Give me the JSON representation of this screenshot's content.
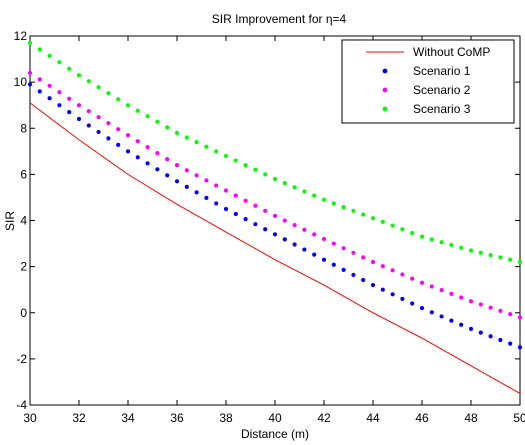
{
  "chart_data": {
    "type": "line",
    "title": "SIR Improvement for η=4",
    "xlabel": "Distance (m)",
    "ylabel": "SIR",
    "xlim": [
      30,
      50
    ],
    "ylim": [
      -4,
      12
    ],
    "xticks": [
      30,
      32,
      34,
      36,
      38,
      40,
      42,
      44,
      46,
      48,
      50
    ],
    "yticks": [
      -4,
      -2,
      0,
      2,
      4,
      6,
      8,
      10,
      12
    ],
    "grid": false,
    "legend_position": "top-right",
    "series": [
      {
        "name": "Without CoMP",
        "style": "line",
        "color": "#ff0000",
        "x": [
          30,
          32,
          34,
          36,
          38,
          40,
          42,
          44,
          46,
          48,
          50
        ],
        "y": [
          9.1,
          7.5,
          6.0,
          4.7,
          3.5,
          2.3,
          1.2,
          0.0,
          -1.1,
          -2.3,
          -3.5
        ]
      },
      {
        "name": "Scenario 1",
        "style": "dots",
        "color": "#0000ff",
        "x": [
          30,
          32,
          34,
          36,
          38,
          40,
          42,
          44,
          46,
          48,
          50
        ],
        "y": [
          9.9,
          8.4,
          7.0,
          5.7,
          4.5,
          3.4,
          2.3,
          1.2,
          0.2,
          -0.7,
          -1.5
        ]
      },
      {
        "name": "Scenario 2",
        "style": "dots",
        "color": "#ff00ff",
        "x": [
          30,
          32,
          34,
          36,
          38,
          40,
          42,
          44,
          46,
          48,
          50
        ],
        "y": [
          10.4,
          9.0,
          7.7,
          6.4,
          5.3,
          4.2,
          3.2,
          2.2,
          1.3,
          0.5,
          -0.2
        ]
      },
      {
        "name": "Scenario 3",
        "style": "dots",
        "color": "#00ff00",
        "x": [
          30,
          32,
          34,
          36,
          38,
          40,
          42,
          44,
          46,
          48,
          50
        ],
        "y": [
          11.7,
          10.3,
          9.0,
          7.8,
          6.8,
          5.8,
          4.9,
          4.1,
          3.3,
          2.7,
          2.2
        ]
      }
    ]
  }
}
